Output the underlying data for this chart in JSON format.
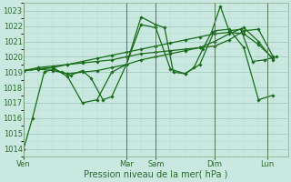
{
  "title": "Pression niveau de la mer( hPa )",
  "tick_color": "#2d6a2d",
  "bg_color": "#c8e8e0",
  "grid_color_major": "#a0c8c0",
  "grid_color_minor": "#b8d8d0",
  "line_color": "#1a6b1a",
  "ylim": [
    1013.5,
    1023.5
  ],
  "yticks": [
    1014,
    1015,
    1016,
    1017,
    1018,
    1019,
    1020,
    1021,
    1022,
    1023
  ],
  "day_labels": [
    "Ven",
    "Mar",
    "Sam",
    "Dim",
    "Lun"
  ],
  "day_x": [
    0.0,
    3.5,
    4.5,
    6.5,
    8.3
  ],
  "xlim": [
    0,
    9.0
  ],
  "line1_x": [
    0.0,
    0.3,
    0.7,
    1.0,
    1.3,
    1.6,
    2.0,
    2.3,
    2.7,
    3.0,
    3.5,
    4.0,
    4.5,
    4.8,
    5.1,
    5.5,
    5.8,
    6.1,
    6.4,
    6.7,
    7.0,
    7.4,
    7.8,
    8.2,
    8.6
  ],
  "line1_y": [
    1014.0,
    1016.0,
    1019.0,
    1019.2,
    1019.0,
    1018.8,
    1019.1,
    1018.6,
    1017.2,
    1017.4,
    1019.5,
    1022.6,
    1022.1,
    1021.9,
    1019.0,
    1018.9,
    1019.3,
    1020.5,
    1021.6,
    1023.3,
    1021.7,
    1021.8,
    1019.7,
    1019.8,
    1020.0
  ],
  "line2_x": [
    0.0,
    0.5,
    1.0,
    1.5,
    2.0,
    2.5,
    3.0,
    3.5,
    4.0,
    4.5,
    5.0,
    5.5,
    6.0,
    6.5,
    7.0,
    7.5,
    8.0,
    8.5
  ],
  "line2_y": [
    1019.1,
    1019.2,
    1019.3,
    1018.7,
    1017.0,
    1017.2,
    1019.0,
    1019.5,
    1022.1,
    1021.9,
    1019.2,
    1018.9,
    1019.5,
    1021.7,
    1021.8,
    1020.6,
    1017.2,
    1017.5
  ],
  "line3_x": [
    0.0,
    0.5,
    1.0,
    1.5,
    2.0,
    2.5,
    3.0,
    3.5,
    4.0,
    4.5,
    5.0,
    5.5,
    6.0,
    6.5,
    7.0,
    7.5,
    8.0,
    8.5
  ],
  "line3_y": [
    1019.1,
    1019.3,
    1019.4,
    1019.5,
    1019.6,
    1019.7,
    1019.8,
    1020.0,
    1020.2,
    1020.3,
    1020.4,
    1020.5,
    1020.6,
    1020.7,
    1021.1,
    1021.7,
    1021.8,
    1020.0
  ],
  "line4_x": [
    0.0,
    0.5,
    1.0,
    1.5,
    2.0,
    2.5,
    3.0,
    3.5,
    4.0,
    4.5,
    5.0,
    5.5,
    6.0,
    6.5,
    7.0,
    7.5,
    8.0,
    8.5
  ],
  "line4_y": [
    1019.1,
    1019.2,
    1019.3,
    1019.5,
    1019.7,
    1019.9,
    1020.1,
    1020.3,
    1020.5,
    1020.7,
    1020.9,
    1021.1,
    1021.3,
    1021.5,
    1021.6,
    1021.5,
    1020.8,
    1019.9
  ],
  "line5_x": [
    0.0,
    0.5,
    1.0,
    1.5,
    2.0,
    2.5,
    3.0,
    3.5,
    4.0,
    4.5,
    5.0,
    5.5,
    6.0,
    6.5,
    7.0,
    7.5,
    8.0,
    8.5
  ],
  "line5_y": [
    1019.1,
    1019.2,
    1019.1,
    1018.9,
    1019.0,
    1019.1,
    1019.3,
    1019.5,
    1019.8,
    1020.0,
    1020.2,
    1020.4,
    1020.6,
    1021.0,
    1021.5,
    1021.9,
    1021.0,
    1019.8
  ]
}
